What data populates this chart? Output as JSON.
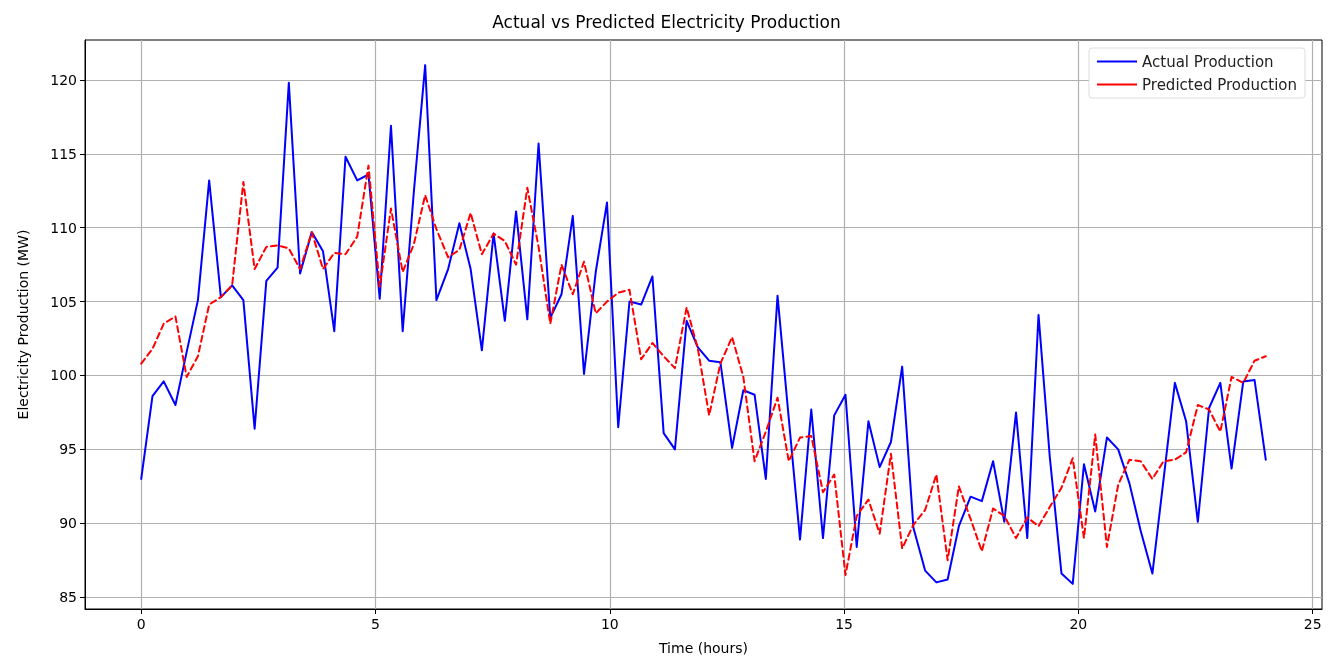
{
  "chart_data": {
    "type": "line",
    "title": "Actual vs Predicted Electricity Production",
    "xlabel": "Time (hours)",
    "ylabel": "Electricity Production (MW)",
    "x": [
      0,
      0.24,
      0.48,
      0.73,
      0.97,
      1.21,
      1.45,
      1.7,
      1.94,
      2.18,
      2.42,
      2.67,
      2.91,
      3.15,
      3.39,
      3.64,
      3.88,
      4.12,
      4.36,
      4.61,
      4.85,
      5.09,
      5.33,
      5.58,
      5.82,
      6.06,
      6.3,
      6.55,
      6.79,
      7.03,
      7.27,
      7.52,
      7.76,
      8,
      8.24,
      8.48,
      8.73,
      8.97,
      9.21,
      9.45,
      9.7,
      9.94,
      10.18,
      10.42,
      10.67,
      10.91,
      11.15,
      11.39,
      11.64,
      11.88,
      12.12,
      12.36,
      12.61,
      12.85,
      13.09,
      13.33,
      13.58,
      13.82,
      14.06,
      14.3,
      14.55,
      14.79,
      15.03,
      15.27,
      15.52,
      15.76,
      16,
      16.24,
      16.48,
      16.73,
      16.97,
      17.21,
      17.45,
      17.7,
      17.94,
      18.18,
      18.42,
      18.67,
      18.91,
      19.15,
      19.39,
      19.64,
      19.88,
      20.12,
      20.36,
      20.61,
      20.85,
      21.09,
      21.33,
      21.58,
      21.82,
      22.06,
      22.3,
      22.55,
      22.79,
      23.03,
      23.27,
      23.52,
      23.76,
      24
    ],
    "series": [
      {
        "name": "Actual Production",
        "color": "#0000ff",
        "line_style": "solid",
        "values": [
          93.0,
          98.6,
          99.6,
          98.0,
          101.6,
          105.1,
          113.2,
          105.3,
          106.1,
          105.1,
          96.4,
          106.4,
          107.3,
          119.8,
          106.9,
          109.7,
          108.4,
          103.0,
          114.8,
          113.2,
          113.6,
          105.2,
          116.9,
          103.0,
          112.5,
          121.0,
          105.1,
          107.2,
          110.3,
          107.2,
          101.7,
          109.6,
          103.7,
          111.1,
          103.8,
          115.7,
          103.9,
          105.5,
          110.8,
          100.1,
          107.0,
          111.7,
          96.5,
          105.0,
          104.8,
          106.7,
          96.1,
          95.0,
          103.7,
          101.9,
          101.0,
          100.9,
          95.1,
          99.0,
          98.7,
          93.0,
          105.4,
          97.1,
          88.9,
          97.7,
          89.0,
          97.3,
          98.7,
          88.4,
          96.9,
          93.8,
          95.5,
          100.6,
          89.7,
          86.8,
          86.0,
          86.2,
          89.8,
          91.8,
          91.5,
          94.2,
          90.1,
          97.5,
          89.0,
          104.1,
          94.5,
          86.6,
          85.9,
          94.0,
          90.8,
          95.8,
          95.0,
          92.7,
          89.5,
          86.6,
          93.0,
          99.5,
          96.9,
          90.1,
          97.8,
          99.5,
          93.7,
          99.6,
          99.7,
          94.3
        ]
      },
      {
        "name": "Predicted Production",
        "color": "#ff0000",
        "line_style": "dashed",
        "values": [
          100.8,
          101.8,
          103.5,
          104.0,
          99.9,
          101.3,
          104.8,
          105.3,
          106.1,
          113.1,
          107.2,
          108.7,
          108.8,
          108.6,
          107.2,
          109.7,
          107.2,
          108.3,
          108.2,
          109.4,
          114.2,
          106.0,
          111.3,
          107.0,
          108.9,
          112.2,
          109.9,
          108.0,
          108.5,
          111.0,
          108.2,
          109.6,
          109.1,
          107.5,
          112.7,
          108.7,
          103.5,
          107.5,
          105.5,
          107.7,
          104.2,
          105.0,
          105.6,
          105.8,
          101.1,
          102.2,
          101.3,
          100.5,
          104.6,
          101.8,
          97.3,
          100.8,
          102.6,
          99.9,
          94.2,
          96.2,
          98.5,
          94.2,
          95.8,
          95.9,
          92.1,
          93.3,
          86.5,
          90.5,
          91.6,
          89.3,
          94.7,
          88.3,
          89.9,
          90.9,
          93.3,
          87.5,
          92.5,
          90.3,
          88.1,
          91.0,
          90.5,
          89.0,
          90.4,
          89.8,
          91.1,
          92.4,
          94.4,
          89.0,
          96.0,
          88.4,
          92.6,
          94.3,
          94.2,
          93.0,
          94.2,
          94.3,
          94.8,
          98.0,
          97.7,
          96.2,
          99.9,
          99.5,
          101.0,
          101.3
        ]
      }
    ],
    "xlim": [
      -1.2,
      25.2
    ],
    "xticks": [
      0,
      5,
      10,
      15,
      20,
      25
    ],
    "ylim": [
      84.2,
      122.7
    ],
    "yticks": [
      85,
      90,
      95,
      100,
      105,
      110,
      115,
      120
    ],
    "grid": true,
    "legend": "top right",
    "marker": "none"
  }
}
